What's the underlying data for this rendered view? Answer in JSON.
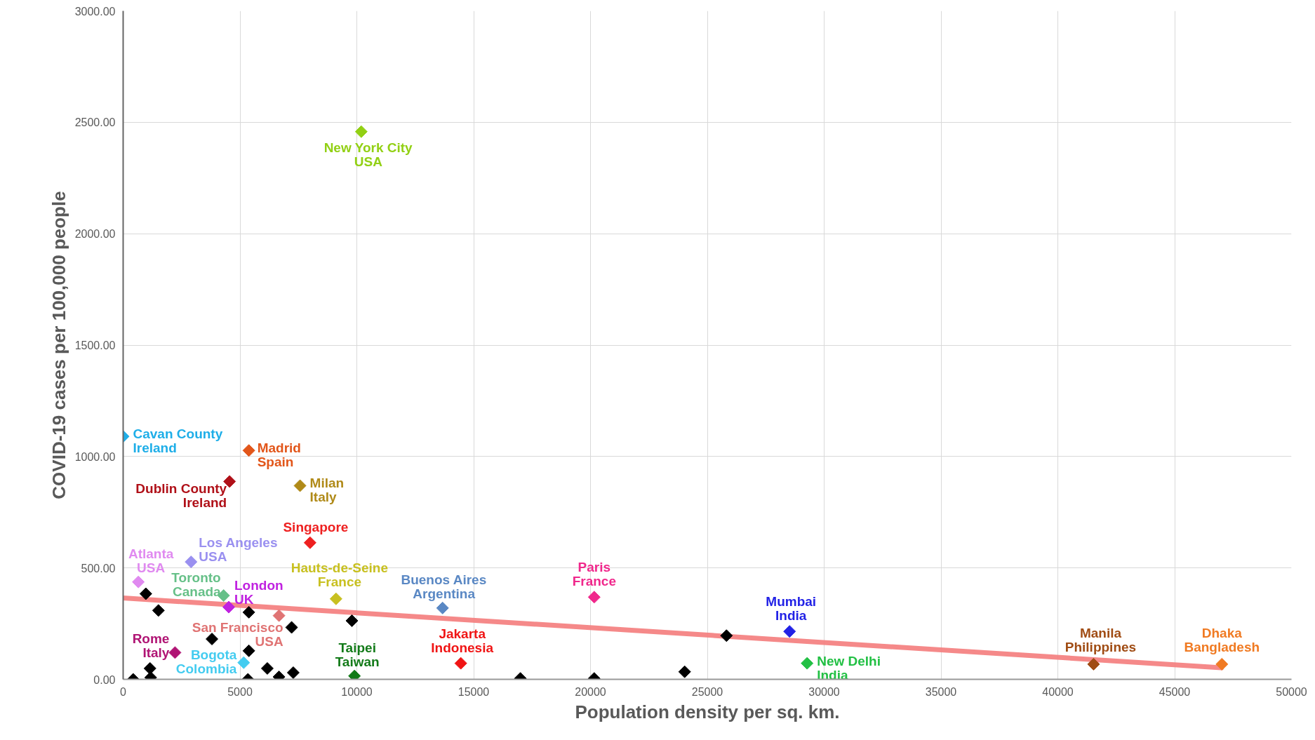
{
  "chart_data": {
    "type": "scatter",
    "xlabel": "Population density per sq. km.",
    "ylabel": "COVID-19 cases per 100,000 people",
    "marker": "diamond",
    "grid": true,
    "xlim": [
      0,
      50000
    ],
    "xticks": [
      0,
      5000,
      10000,
      15000,
      20000,
      25000,
      30000,
      35000,
      40000,
      45000,
      50000
    ],
    "ylim": [
      0,
      3000
    ],
    "yticks": [
      {
        "value": 0,
        "label": "0.00"
      },
      {
        "value": 500,
        "label": "500.00"
      },
      {
        "value": 1000,
        "label": "1000.00"
      },
      {
        "value": 1500,
        "label": "1500.00"
      },
      {
        "value": 2000,
        "label": "2000.00"
      },
      {
        "value": 2500,
        "label": "2500.00"
      },
      {
        "value": 3000,
        "label": "3000.00"
      }
    ],
    "series": [
      {
        "type": "scatter",
        "color": "#000000",
        "x": [
          970,
          1510,
          5380,
          7210,
          9790,
          3800,
          5380,
          1150,
          1180,
          430,
          5340,
          6170,
          6670,
          7280,
          17000,
          20160,
          24030,
          25820
        ],
        "values": [
          384,
          309,
          301,
          233,
          263,
          181,
          128,
          49,
          8,
          0,
          0,
          49,
          11,
          30,
          4,
          4,
          34,
          196
        ]
      },
      {
        "type": "line",
        "marker": "none",
        "color": "#f47c7c",
        "x": [
          0,
          47000
        ],
        "values": [
          365,
          52
        ]
      },
      {
        "name": "Cavan County\nIreland",
        "color": "#1eaee8",
        "x": [
          0
        ],
        "values": [
          1090
        ]
      },
      {
        "name": "Madrid\nSpain",
        "color": "#e2561a",
        "x": [
          5380
        ],
        "values": [
          1027
        ]
      },
      {
        "name": "Dublin County\nIreland",
        "color": "#b01018",
        "x": [
          4555
        ],
        "values": [
          888
        ]
      },
      {
        "name": "Milan\nItaly",
        "color": "#b08a18",
        "x": [
          7570
        ],
        "values": [
          869
        ]
      },
      {
        "name": "Singapore",
        "color": "#ee2020",
        "x": [
          8000
        ],
        "values": [
          613
        ]
      },
      {
        "name": "Los Angeles\nUSA",
        "color": "#9a90f0",
        "x": [
          2905
        ],
        "values": [
          527
        ]
      },
      {
        "name": "Atlanta\nUSA",
        "color": "#e08af0",
        "x": [
          650
        ],
        "values": [
          437
        ]
      },
      {
        "name": "Toronto\nCanada",
        "color": "#66c088",
        "x": [
          4300
        ],
        "values": [
          376
        ]
      },
      {
        "name": "London\nUK",
        "color": "#c022e0",
        "x": [
          4520
        ],
        "values": [
          324
        ]
      },
      {
        "name": "Hauts-de-Seine\nFrance",
        "color": "#c8c020",
        "x": [
          9110
        ],
        "values": [
          361
        ]
      },
      {
        "name": "Buenos Aires\nArgentina",
        "color": "#5a88c4",
        "x": [
          13670
        ],
        "values": [
          320
        ]
      },
      {
        "name": "Paris\nFrance",
        "color": "#f0288c",
        "x": [
          20160
        ],
        "values": [
          369
        ]
      },
      {
        "name": "Mumbai\nIndia",
        "color": "#2222e6",
        "x": [
          28520
        ],
        "values": [
          215
        ]
      },
      {
        "name": "New Delhi\nIndia",
        "color": "#22c044",
        "x": [
          29270
        ],
        "values": [
          72
        ]
      },
      {
        "name": "Manila\nPhilippines",
        "color": "#a04c14",
        "x": [
          41530
        ],
        "values": [
          68
        ]
      },
      {
        "name": "Dhaka\nBangladesh",
        "color": "#f07a22",
        "x": [
          47020
        ],
        "values": [
          68
        ]
      },
      {
        "name": "Jakarta\nIndonesia",
        "color": "#f01414",
        "x": [
          14450
        ],
        "values": [
          72
        ]
      },
      {
        "name": "Taipei\nTaiwan",
        "color": "#127a18",
        "x": [
          9900
        ],
        "values": [
          15
        ]
      },
      {
        "name": "San Francisco\nUSA",
        "color": "#e07474",
        "x": [
          6670
        ],
        "values": [
          286
        ]
      },
      {
        "name": "Rome\nItaly",
        "color": "#b01474",
        "x": [
          2220
        ],
        "values": [
          120
        ]
      },
      {
        "name": "Bogota\nColombia",
        "color": "#44ccf0",
        "x": [
          5160
        ],
        "values": [
          75
        ]
      },
      {
        "name": "New York City\nUSA",
        "color": "#92d014",
        "x": [
          10190
        ],
        "values": [
          2458
        ]
      }
    ]
  }
}
